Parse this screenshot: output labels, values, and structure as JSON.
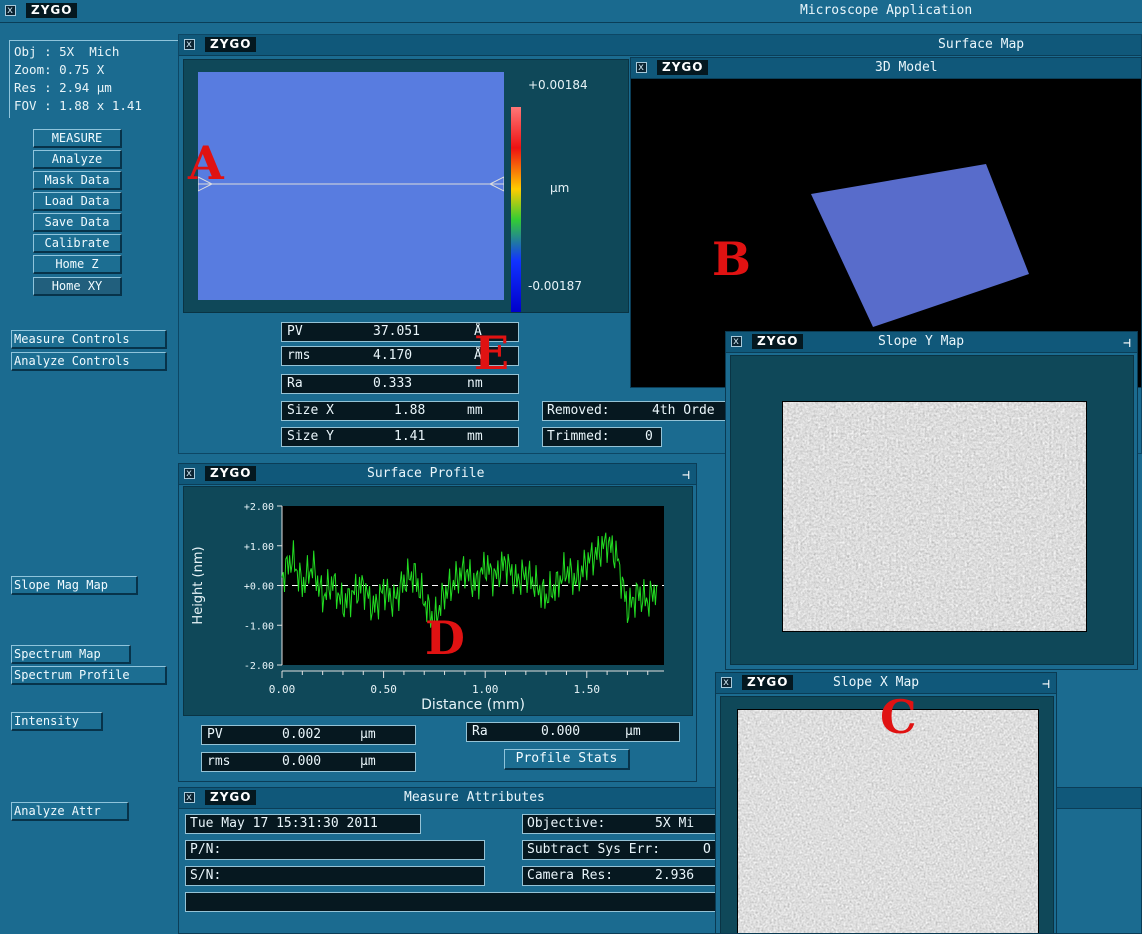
{
  "app": {
    "logo": "ZYGO",
    "title": "Microscope Application"
  },
  "info": {
    "obj": "Obj : 5X  Mich",
    "zoom": "Zoom: 0.75 X",
    "res": "Res : 2.94 µm",
    "fov": "FOV : 1.88 x 1.41"
  },
  "buttons": [
    "MEASURE",
    "Analyze",
    "Mask Data",
    "Load Data",
    "Save Data",
    "Calibrate",
    "Home Z",
    "Home XY"
  ],
  "side_links": {
    "measure_controls": "Measure Controls",
    "analyze_controls": "Analyze Controls",
    "slope_mag_map": "Slope Mag Map",
    "spectrum_map": "Spectrum Map",
    "spectrum_profile": "Spectrum Profile",
    "intensity": "Intensity",
    "analyze_attr": "Analyze Attr"
  },
  "surface_map": {
    "title": "Surface Map",
    "scale_max": "+0.00184",
    "scale_unit": "µm",
    "scale_min": "-0.00187",
    "stats": [
      {
        "label": "PV",
        "value": "37.051",
        "unit": "Å"
      },
      {
        "label": "rms",
        "value": "4.170",
        "unit": "Å"
      },
      {
        "label": "Ra",
        "value": "0.333",
        "unit": "nm"
      },
      {
        "label": "Size X",
        "value": "1.88",
        "unit": "mm"
      },
      {
        "label": "Size Y",
        "value": "1.41",
        "unit": "mm"
      }
    ],
    "removed_label": "Removed:",
    "removed_value": "4th Orde",
    "trimmed_label": "Trimmed:",
    "trimmed_value": "0"
  },
  "model_3d": {
    "title": "3D Model"
  },
  "slope_y": {
    "title": "Slope Y Map"
  },
  "slope_x": {
    "title": "Slope X Map"
  },
  "surface_profile": {
    "title": "Surface Profile",
    "pv_label": "PV",
    "pv_value": "0.002",
    "pv_unit": "µm",
    "rms_label": "rms",
    "rms_value": "0.000",
    "rms_unit": "µm",
    "ra_label": "Ra",
    "ra_value": "0.000",
    "ra_unit": "µm",
    "stats_button": "Profile Stats"
  },
  "chart_data": {
    "type": "line",
    "title": "",
    "xlabel": "Distance (mm)",
    "ylabel": "Height (nm)",
    "xlim": [
      0,
      1.88
    ],
    "ylim": [
      -2.0,
      2.0
    ],
    "x_ticks": [
      "0.00",
      "0.50",
      "1.00",
      "1.50"
    ],
    "x_tick_values": [
      0,
      0.5,
      1.0,
      1.5
    ],
    "y_ticks": [
      "+2.00",
      "+1.00",
      "+0.00",
      "-1.00",
      "-2.00"
    ],
    "y_tick_values": [
      2,
      1,
      0,
      -1,
      -2
    ],
    "series": [
      {
        "color": "#22dd22",
        "x": [
          0.0,
          0.05,
          0.1,
          0.15,
          0.2,
          0.25,
          0.3,
          0.35,
          0.4,
          0.45,
          0.5,
          0.55,
          0.6,
          0.65,
          0.7,
          0.75,
          0.8,
          0.85,
          0.9,
          0.95,
          1.0,
          1.05,
          1.1,
          1.15,
          1.2,
          1.25,
          1.3,
          1.35,
          1.4,
          1.45,
          1.5,
          1.55,
          1.6,
          1.65,
          1.7,
          1.75,
          1.8,
          1.85
        ],
        "y": [
          0.2,
          0.7,
          0.0,
          0.5,
          -0.3,
          0.1,
          -0.5,
          -0.2,
          0.0,
          -0.6,
          -0.1,
          -0.4,
          0.1,
          0.3,
          -0.4,
          -0.9,
          -0.2,
          0.1,
          0.4,
          0.0,
          0.5,
          0.2,
          0.6,
          0.1,
          0.3,
          0.0,
          -0.3,
          0.0,
          0.4,
          0.1,
          0.6,
          0.8,
          1.1,
          0.7,
          -0.6,
          -0.2,
          -0.4,
          0.0
        ]
      }
    ],
    "reference_line": 0,
    "grid": false
  },
  "measure_attributes": {
    "title": "Measure Attributes",
    "date": "Tue May 17 15:31:30 2011",
    "pn": "P/N:",
    "sn": "S/N:",
    "objective_label": "Objective:",
    "objective_value": "5X  Mi",
    "sys_err_label": "Subtract Sys Err:",
    "sys_err_value": "O",
    "camera_label": "Camera Res:",
    "camera_value": "2.936"
  },
  "annotations": {
    "a": "A",
    "b": "B",
    "c": "C",
    "d": "D",
    "e": "E"
  }
}
